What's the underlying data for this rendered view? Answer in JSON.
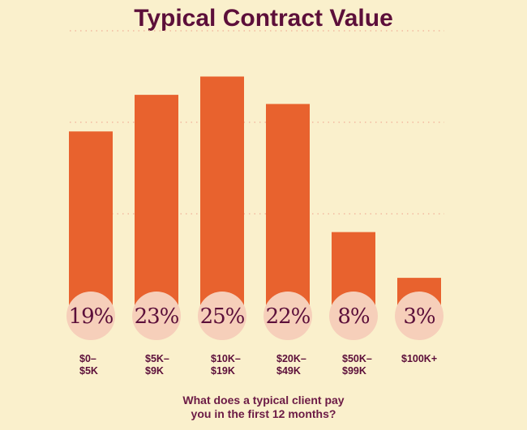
{
  "chart_data": {
    "type": "bar",
    "title": "Typical Contract Value",
    "xlabel": "What does a typical client pay you in the first 12 months?",
    "categories": [
      [
        "$0–",
        "$5K"
      ],
      [
        "$5K–",
        "$9K"
      ],
      [
        "$10K–",
        "$19K"
      ],
      [
        "$20K–",
        "$49K"
      ],
      [
        "$50K–",
        "$99K"
      ],
      [
        "$100K+"
      ]
    ],
    "values": [
      19,
      23,
      25,
      22,
      8,
      3
    ],
    "data_labels": [
      "19%",
      "23%",
      "25%",
      "22%",
      "8%",
      "3%"
    ],
    "ylim": [
      0,
      30
    ],
    "grid": true,
    "colors": {
      "background": "#faf0cc",
      "bar": "#e8622e",
      "label_circle": "#f6cfba",
      "text": "#5c0f3a",
      "grid": "#f2b9a0"
    }
  }
}
